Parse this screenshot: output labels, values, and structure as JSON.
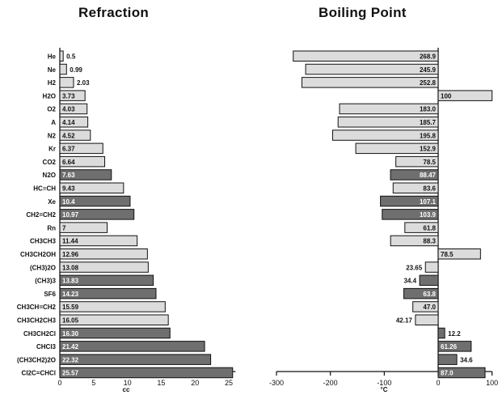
{
  "chart_data": [
    {
      "type": "bar",
      "orientation": "horizontal",
      "title": "Refraction",
      "xlabel": "cc",
      "ylabel": "",
      "xlim": [
        0,
        26
      ],
      "xticks": [
        0,
        5,
        10,
        15,
        20,
        25
      ],
      "categories": [
        "He",
        "Ne",
        "H2",
        "H2O",
        "O2",
        "A",
        "N2",
        "Kr",
        "CO2",
        "N2O",
        "HC≡CH",
        "Xe",
        "CH2=CH2",
        "Rn",
        "CH3CH3",
        "CH3CH2OH",
        "(CH3)2O",
        "(CH3)3",
        "SF6",
        "CH3CH=CH2",
        "CH3CH2CH3",
        "CH3CH2Cl",
        "CHCl3",
        "(CH3CH2)2O",
        "Cl2C=CHCl"
      ],
      "values": [
        0.5,
        0.99,
        2.03,
        3.73,
        4.03,
        4.14,
        4.52,
        6.37,
        6.64,
        7.63,
        9.43,
        10.4,
        10.97,
        7,
        11.44,
        12.96,
        13.08,
        13.83,
        14.23,
        15.59,
        16.05,
        16.3,
        21.42,
        22.32,
        25.57
      ],
      "value_labels": [
        "0.5",
        "0.99",
        "2.03",
        "3.73",
        "4.03",
        "4.14",
        "4.52",
        "6.37",
        "6.64",
        "7.63",
        "9.43",
        "10.4",
        "10.97",
        "7",
        "11.44",
        "12.96",
        "13.08",
        "13.83",
        "14.23",
        "15.59",
        "16.05",
        "16.30",
        "21.42",
        "22.32",
        "25.57"
      ],
      "shading": [
        "light",
        "light",
        "light",
        "light",
        "light",
        "light",
        "light",
        "light",
        "light",
        "dark",
        "light",
        "dark",
        "dark",
        "light",
        "light",
        "light",
        "light",
        "dark",
        "dark",
        "light",
        "light",
        "dark",
        "dark",
        "dark",
        "dark"
      ],
      "grid": false,
      "legend": "none"
    },
    {
      "type": "bar",
      "orientation": "horizontal",
      "title": "Boiling Point",
      "xlabel": "°C",
      "ylabel": "",
      "xlim": [
        -300,
        100
      ],
      "xticks": [
        -300,
        -200,
        -100,
        0,
        100
      ],
      "categories": [
        "He",
        "Ne",
        "H2",
        "H2O",
        "O2",
        "A",
        "N2",
        "Kr",
        "CO2",
        "N2O",
        "HC≡CH",
        "Xe",
        "CH2=CH2",
        "Rn",
        "CH3CH3",
        "CH3CH2OH",
        "(CH3)2O",
        "(CH3)3",
        "SF6",
        "CH3CH=CH2",
        "CH3CH2CH3",
        "CH3CH2Cl",
        "CHCl3",
        "(CH3CH2)2O",
        "Cl2C=CHCl"
      ],
      "values": [
        -268.9,
        -245.9,
        -252.8,
        100,
        -183.0,
        -185.7,
        -195.8,
        -152.9,
        -78.5,
        -88.47,
        -83.6,
        -107.1,
        -103.9,
        -61.8,
        -88.3,
        78.5,
        -23.65,
        -34.4,
        -63.8,
        -47.0,
        -42.17,
        12.2,
        61.26,
        34.6,
        87.0
      ],
      "value_labels": [
        "268.9",
        "245.9",
        "252.8",
        "100",
        "183.0",
        "185.7",
        "195.8",
        "152.9",
        "78.5",
        "88.47",
        "83.6",
        "107.1",
        "103.9",
        "61.8",
        "88.3",
        "78.5",
        "23.65",
        "34.4",
        "63.8",
        "47.0",
        "42.17",
        "12.2",
        "61.26",
        "34.6",
        "87.0"
      ],
      "shading": [
        "light",
        "light",
        "light",
        "light",
        "light",
        "light",
        "light",
        "light",
        "light",
        "dark",
        "light",
        "dark",
        "dark",
        "light",
        "light",
        "light",
        "light",
        "dark",
        "dark",
        "light",
        "light",
        "dark",
        "dark",
        "dark",
        "dark"
      ],
      "grid": false,
      "legend": "none"
    }
  ],
  "colors": {
    "light": "#dcdcdc",
    "dark": "#6f6f6f",
    "stroke": "#111111"
  }
}
